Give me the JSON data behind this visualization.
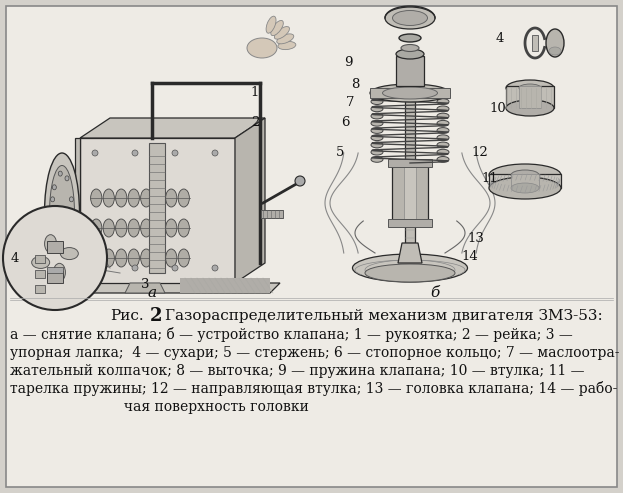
{
  "background_color": "#d4d1cb",
  "fig_width": 6.23,
  "fig_height": 4.93,
  "dpi": 100,
  "caption_title_line": "Рис.   2  Газораспределительный механизм двигателя ЗМЗ-53:",
  "caption_body_lines": [
    "а — снятие клапана; б — устройство клапана;  1 — рукоятка;  2 — рейка;  3  —",
    "упорная лапка;  4 — сухари;  5 — стержень;  6 — стопорное кольцо;  7 — маслоотра-",
    "жательный колпачок;  8 — выточка;  9 — пружина клапана;  10 — втулка;  11 —",
    "тарелка пружины;  12 — направляющая втулка;  13 — головка клапана;  14 — рабо-",
    "чая поверхность головки"
  ],
  "lc": "#2a2a2a",
  "lc_light": "#888888",
  "paper_color": "#e8e5df",
  "shade_color": "#c8c5be"
}
